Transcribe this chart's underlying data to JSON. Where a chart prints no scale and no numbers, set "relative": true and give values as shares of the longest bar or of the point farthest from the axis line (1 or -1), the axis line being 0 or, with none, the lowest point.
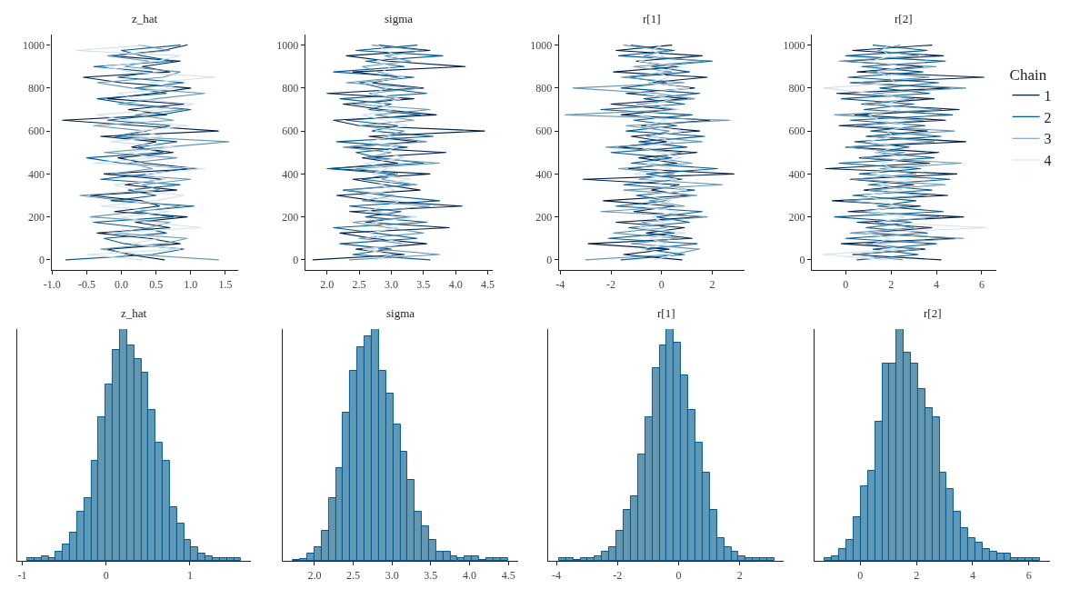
{
  "chart_data": [
    {
      "type": "line",
      "title": "z_hat",
      "legend": "right",
      "legend_title": "Chain",
      "xlim": [
        -1.01,
        1.69
      ],
      "xticks": [
        {
          "value": -1.0,
          "label": "-1.0"
        },
        -0.5,
        {
          "value": 0,
          "label": "0.0"
        },
        0.5,
        {
          "value": 1.0,
          "label": "1.0"
        },
        1.5
      ],
      "ylim": [
        -47,
        1049
      ],
      "yticks": [
        0,
        200,
        400,
        600,
        800,
        1000
      ],
      "series": [
        {
          "name": "1",
          "color": "#011f4b",
          "values": [
            0,
            25,
            50,
            75,
            100,
            125,
            150,
            175,
            200,
            225,
            250,
            275,
            300,
            325,
            350,
            375,
            400,
            425,
            450,
            475,
            500,
            525,
            550,
            575,
            600,
            625,
            650,
            675,
            700,
            725,
            750,
            775,
            800,
            825,
            850,
            875,
            900,
            925,
            950,
            975,
            1000
          ],
          "x": [
            0.62,
            0.1,
            -0.2,
            0.85,
            0.4,
            -0.35,
            0.7,
            0.2,
            0.95,
            -0.1,
            0.55,
            0.3,
            -0.45,
            0.8,
            0.05,
            0.6,
            -0.25,
            1.1,
            0.35,
            -0.05,
            0.75,
            0.15,
            0.5,
            -0.3,
            1.4,
            0.25,
            -0.85,
            0.65,
            0.1,
            0.9,
            -0.2,
            0.45,
            1.0,
            0.0,
            -0.55,
            0.7,
            0.3,
            0.85,
            -0.15,
            0.6,
            0.95
          ]
        },
        {
          "name": "2",
          "color": "#005b96",
          "values": [
            0,
            25,
            50,
            75,
            100,
            125,
            150,
            175,
            200,
            225,
            250,
            275,
            300,
            325,
            350,
            375,
            400,
            425,
            450,
            475,
            500,
            525,
            550,
            575,
            600,
            625,
            650,
            675,
            700,
            725,
            750,
            775,
            800,
            825,
            850,
            875,
            900,
            925,
            950,
            975,
            1000
          ],
          "x": [
            -0.8,
            0.45,
            0.9,
            0.05,
            -0.25,
            0.65,
            0.3,
            -0.4,
            0.75,
            0.2,
            1.05,
            -0.15,
            0.5,
            0.1,
            0.85,
            -0.3,
            0.4,
            0.95,
            0.0,
            -0.5,
            0.6,
            0.25,
            0.8,
            -0.1,
            0.35,
            0.7,
            -0.2,
            0.55,
            1.0,
            0.15,
            -0.35,
            0.65,
            0.2,
            0.9,
            -0.05,
            0.45,
            -0.4,
            0.75,
            0.3,
            0.0,
            0.85
          ]
        },
        {
          "name": "3",
          "color": "#6497b1",
          "values": [
            0,
            25,
            50,
            75,
            100,
            125,
            150,
            175,
            200,
            225,
            250,
            275,
            300,
            325,
            350,
            375,
            400,
            425,
            450,
            475,
            500,
            525,
            550,
            575,
            600,
            625,
            650,
            675,
            700,
            725,
            750,
            775,
            800,
            825,
            850,
            875,
            900,
            925,
            950,
            975,
            1000
          ],
          "x": [
            1.4,
            0.2,
            -0.3,
            0.6,
            0.95,
            -0.1,
            0.4,
            0.7,
            -0.45,
            0.25,
            0.85,
            0.05,
            -0.6,
            0.55,
            0.3,
            1.0,
            -0.15,
            0.45,
            0.1,
            0.8,
            -0.25,
            0.65,
            1.55,
            0.0,
            0.35,
            -0.4,
            0.75,
            0.2,
            0.9,
            -0.05,
            0.5,
            1.2,
            0.15,
            -0.35,
            0.6,
            0.85,
            0.05,
            0.4,
            -0.2,
            0.7,
            0.25
          ]
        },
        {
          "name": "4",
          "color": "#d1e1ec",
          "values": [
            0,
            25,
            50,
            75,
            100,
            125,
            150,
            175,
            200,
            225,
            250,
            275,
            300,
            325,
            350,
            375,
            400,
            425,
            450,
            475,
            500,
            525,
            550,
            575,
            600,
            625,
            650,
            675,
            700,
            725,
            750,
            775,
            800,
            825,
            850,
            875,
            900,
            925,
            950,
            975,
            1000
          ],
          "x": [
            0.3,
            -0.5,
            0.85,
            0.15,
            0.55,
            -0.2,
            1.15,
            0.4,
            0.0,
            0.7,
            -0.3,
            0.5,
            0.9,
            0.2,
            -0.1,
            0.65,
            0.35,
            1.2,
            -0.4,
            0.45,
            0.1,
            0.75,
            -0.15,
            0.6,
            0.25,
            0.95,
            0.05,
            -0.35,
            0.55,
            1.05,
            0.2,
            -0.05,
            0.8,
            0.4,
            1.35,
            0.15,
            -0.25,
            0.5,
            0.85,
            -0.65,
            0.35
          ]
        }
      ]
    },
    {
      "type": "line",
      "title": "sigma",
      "xlim": [
        1.66,
        4.57
      ],
      "xticks": [
        {
          "value": 2.0,
          "label": "2.0"
        },
        2.5,
        {
          "value": 3.0,
          "label": "3.0"
        },
        3.5,
        {
          "value": 4.0,
          "label": "4.0"
        },
        4.5
      ],
      "ylim": [
        -47,
        1049
      ],
      "yticks": [
        0,
        200,
        400,
        600,
        800,
        1000
      ],
      "series": [
        {
          "color": "#011f4b",
          "values": [
            0,
            25,
            50,
            75,
            100,
            125,
            150,
            175,
            200,
            225,
            250,
            275,
            300,
            325,
            350,
            375,
            400,
            425,
            450,
            475,
            500,
            525,
            550,
            575,
            600,
            625,
            650,
            675,
            700,
            725,
            750,
            775,
            800,
            825,
            850,
            875,
            900,
            925,
            950,
            975,
            1000
          ],
          "x": [
            1.78,
            3.2,
            2.45,
            3.55,
            2.7,
            2.2,
            3.9,
            2.6,
            3.3,
            2.35,
            4.1,
            2.75,
            2.15,
            3.45,
            2.9,
            2.4,
            3.6,
            2.05,
            3.1,
            2.55,
            3.85,
            2.3,
            3.4,
            2.65,
            4.45,
            2.5,
            2.1,
            3.7,
            2.85,
            2.25,
            3.35,
            2.0,
            3.5,
            2.7,
            3.15,
            2.4,
            4.15,
            2.95,
            2.3,
            3.6,
            2.8
          ]
        },
        {
          "color": "#005b96",
          "values": [
            0,
            25,
            50,
            75,
            100,
            125,
            150,
            175,
            200,
            225,
            250,
            275,
            300,
            325,
            350,
            375,
            400,
            425,
            450,
            475,
            500,
            525,
            550,
            575,
            600,
            625,
            650,
            675,
            700,
            725,
            750,
            775,
            800,
            825,
            850,
            875,
            900,
            925,
            950,
            975,
            1000
          ],
          "x": [
            3.6,
            2.4,
            3.0,
            2.2,
            3.4,
            2.75,
            2.1,
            3.55,
            2.6,
            3.15,
            2.35,
            3.75,
            2.9,
            2.25,
            3.3,
            2.55,
            3.05,
            2.0,
            3.5,
            2.8,
            2.45,
            3.25,
            2.15,
            3.65,
            2.7,
            3.1,
            2.3,
            3.45,
            2.65,
            3.0,
            2.2,
            3.55,
            2.85,
            2.5,
            3.35,
            2.1,
            3.2,
            2.6,
            3.8,
            2.45,
            3.4
          ]
        },
        {
          "color": "#6497b1",
          "values": [
            0,
            25,
            50,
            75,
            100,
            125,
            150,
            175,
            200,
            225,
            250,
            275,
            300,
            325,
            350,
            375,
            400,
            425,
            450,
            475,
            500,
            525,
            550,
            575,
            600,
            625,
            650,
            675,
            700,
            725,
            750,
            775,
            800,
            825,
            850,
            875,
            900,
            925,
            950,
            975,
            1000
          ],
          "x": [
            2.35,
            3.75,
            2.8,
            3.2,
            2.5,
            3.5,
            2.95,
            2.4,
            3.3,
            2.7,
            3.6,
            2.55,
            3.05,
            2.3,
            3.4,
            2.85,
            3.1,
            2.45,
            3.75,
            2.6,
            3.0,
            2.25,
            3.55,
            2.9,
            3.2,
            2.5,
            3.35,
            2.75,
            3.6,
            2.4,
            3.05,
            2.65,
            3.45,
            2.3,
            3.15,
            2.8,
            2.55,
            3.3,
            2.9,
            3.5,
            2.7
          ]
        },
        {
          "color": "#d1e1ec",
          "values": [
            0,
            25,
            50,
            75,
            100,
            125,
            150,
            175,
            200,
            225,
            250,
            275,
            300,
            325,
            350,
            375,
            400,
            425,
            450,
            475,
            500,
            525,
            550,
            575,
            600,
            625,
            650,
            675,
            700,
            725,
            750,
            775,
            800,
            825,
            850,
            875,
            900,
            925,
            950,
            975,
            1000
          ],
          "x": [
            2.75,
            3.0,
            2.55,
            3.25,
            2.85,
            2.65,
            3.1,
            2.7,
            3.4,
            2.6,
            2.9,
            3.15,
            2.5,
            3.05,
            2.8,
            3.3,
            2.7,
            2.95,
            2.6,
            3.2,
            2.85,
            3.1,
            2.65,
            3.0,
            2.75,
            3.25,
            2.9,
            2.55,
            3.05,
            2.8,
            3.15,
            2.7,
            2.95,
            2.6,
            3.2,
            2.85,
            3.0,
            2.75,
            3.1,
            2.9,
            2.8
          ]
        }
      ]
    },
    {
      "type": "line",
      "title": "r[1]",
      "xlim": [
        -4.05,
        3.26
      ],
      "xticks": [
        -4,
        -2,
        0,
        2
      ],
      "ylim": [
        -47,
        1049
      ],
      "yticks": [
        0,
        200,
        400,
        600,
        800,
        1000
      ],
      "series": [
        {
          "color": "#011f4b",
          "values": [
            0,
            25,
            50,
            75,
            100,
            125,
            150,
            175,
            200,
            225,
            250,
            275,
            300,
            325,
            350,
            375,
            400,
            425,
            450,
            475,
            500,
            525,
            550,
            575,
            600,
            625,
            650,
            675,
            700,
            725,
            750,
            775,
            800,
            825,
            850,
            875,
            900,
            925,
            950,
            975,
            1000
          ],
          "x": [
            0.8,
            -1.5,
            0.3,
            -2.9,
            1.2,
            -0.6,
            0.9,
            -1.8,
            1.6,
            -1.1,
            0.5,
            -2.3,
            1.1,
            -0.4,
            0.7,
            -3.1,
            2.85,
            -1.3,
            0.6,
            -0.9,
            1.4,
            -1.7,
            0.2,
            -1.2,
            1.5,
            -0.8,
            1.9,
            -1.6,
            0.4,
            -2.0,
            1.0,
            -1.4,
            1.3,
            -0.5,
            1.8,
            -1.9,
            0.7,
            -1.0,
            1.6,
            -1.8,
            0.4
          ]
        },
        {
          "color": "#005b96",
          "values": [
            0,
            25,
            50,
            75,
            100,
            125,
            150,
            175,
            200,
            225,
            250,
            275,
            300,
            325,
            350,
            375,
            400,
            425,
            450,
            475,
            500,
            525,
            550,
            575,
            600,
            625,
            650,
            675,
            700,
            725,
            750,
            775,
            800,
            825,
            850,
            875,
            900,
            925,
            950,
            975,
            1000
          ],
          "x": [
            -1.6,
            0.9,
            -0.7,
            1.4,
            -2.1,
            0.5,
            -1.3,
            1.1,
            -0.2,
            1.6,
            -1.8,
            0.3,
            -1.0,
            1.3,
            -1.5,
            0.8,
            -0.6,
            2.2,
            -1.2,
            0.4,
            -2.0,
            1.0,
            -0.9,
            1.7,
            -1.4,
            0.6,
            -1.1,
            1.2,
            -2.4,
            0.9,
            -0.7,
            1.5,
            -1.6,
            0.2,
            -1.3,
            1.1,
            -0.4,
            2.0,
            -1.7,
            0.5,
            -1.2
          ]
        },
        {
          "color": "#6497b1",
          "values": [
            0,
            25,
            50,
            75,
            100,
            125,
            150,
            175,
            200,
            225,
            250,
            275,
            300,
            325,
            350,
            375,
            400,
            425,
            450,
            475,
            500,
            525,
            550,
            575,
            600,
            625,
            650,
            675,
            700,
            725,
            750,
            775,
            800,
            825,
            850,
            875,
            900,
            925,
            950,
            975,
            1000
          ],
          "x": [
            -3.0,
            0.4,
            1.5,
            -1.2,
            0.7,
            -1.9,
            0.2,
            -0.8,
            1.8,
            -2.4,
            0.9,
            -0.5,
            1.4,
            -1.5,
            2.4,
            -0.9,
            0.5,
            -1.7,
            1.2,
            -0.3,
            0.8,
            -2.2,
            1.6,
            -0.6,
            0.3,
            -1.4,
            2.7,
            -3.8,
            0.6,
            -1.0,
            1.3,
            -0.2,
            -3.5,
            0.9,
            -1.6,
            0.4,
            -1.1,
            1.7,
            -0.7,
            0.2,
            -1.5
          ]
        },
        {
          "color": "#d1e1ec",
          "values": [
            0,
            25,
            50,
            75,
            100,
            125,
            150,
            175,
            200,
            225,
            250,
            275,
            300,
            325,
            350,
            375,
            400,
            425,
            450,
            475,
            500,
            525,
            550,
            575,
            600,
            625,
            650,
            675,
            700,
            725,
            750,
            775,
            800,
            825,
            850,
            875,
            900,
            925,
            950,
            975,
            1000
          ],
          "x": [
            -0.3,
            0.5,
            -0.8,
            0.2,
            -0.5,
            0.9,
            -1.0,
            0.1,
            -0.4,
            0.7,
            -0.9,
            0.3,
            -0.6,
            1.0,
            -0.2,
            0.6,
            -1.1,
            0.4,
            -0.7,
            0.8,
            -0.1,
            -0.9,
            0.5,
            -0.4,
            0.9,
            -0.6,
            0.2,
            -1.0,
            0.7,
            -0.3,
            0.4,
            -0.8,
            1.1,
            -0.5,
            0.3,
            -0.2,
            0.8,
            -0.9,
            0.1,
            -0.4,
            0.0
          ]
        }
      ]
    },
    {
      "type": "line",
      "title": "r[2]",
      "xlim": [
        -1.5,
        6.64
      ],
      "xticks": [
        0,
        2,
        4,
        6
      ],
      "ylim": [
        -47,
        1049
      ],
      "yticks": [
        0,
        200,
        400,
        600,
        800,
        1000
      ],
      "series": [
        {
          "color": "#011f4b",
          "values": [
            0,
            25,
            50,
            75,
            100,
            125,
            150,
            175,
            200,
            225,
            250,
            275,
            300,
            325,
            350,
            375,
            400,
            425,
            450,
            475,
            500,
            525,
            550,
            575,
            600,
            625,
            650,
            675,
            700,
            725,
            750,
            775,
            800,
            825,
            850,
            875,
            900,
            925,
            950,
            975,
            1000
          ],
          "x": [
            4.2,
            0.3,
            3.5,
            -0.2,
            4.8,
            1.0,
            3.8,
            0.5,
            5.2,
            0.1,
            3.3,
            -0.6,
            4.5,
            0.8,
            3.0,
            0.2,
            4.9,
            -0.9,
            3.7,
            0.6,
            4.1,
            0.0,
            5.3,
            0.9,
            3.6,
            -0.3,
            4.4,
            0.4,
            5.0,
            0.7,
            3.9,
            -0.4,
            4.6,
            0.2,
            6.1,
            0.5,
            3.4,
            -0.1,
            4.3,
            0.3,
            3.8
          ]
        },
        {
          "color": "#005b96",
          "values": [
            0,
            25,
            50,
            75,
            100,
            125,
            150,
            175,
            200,
            225,
            250,
            275,
            300,
            325,
            350,
            375,
            400,
            425,
            450,
            475,
            500,
            525,
            550,
            575,
            600,
            625,
            650,
            675,
            700,
            725,
            750,
            775,
            800,
            825,
            850,
            875,
            900,
            925,
            950,
            975,
            1000
          ],
          "x": [
            0.5,
            3.2,
            1.2,
            4.0,
            0.0,
            3.6,
            0.9,
            2.9,
            -0.5,
            4.3,
            1.4,
            3.1,
            0.3,
            3.8,
            1.0,
            4.6,
            0.6,
            3.3,
            -0.3,
            3.9,
            1.3,
            2.8,
            0.4,
            4.2,
            1.1,
            3.5,
            0.2,
            4.7,
            0.8,
            3.0,
            -0.2,
            3.7,
            1.5,
            4.1,
            0.1,
            3.4,
            0.7,
            4.4,
            0.0,
            3.6,
            1.2
          ]
        },
        {
          "color": "#6497b1",
          "values": [
            0,
            25,
            50,
            75,
            100,
            125,
            150,
            175,
            200,
            225,
            250,
            275,
            300,
            325,
            350,
            375,
            400,
            425,
            450,
            475,
            500,
            525,
            550,
            575,
            600,
            625,
            650,
            675,
            700,
            725,
            750,
            775,
            800,
            825,
            850,
            875,
            900,
            925,
            950,
            975,
            1000
          ],
          "x": [
            2.5,
            0.4,
            3.3,
            0.9,
            5.2,
            0.2,
            3.0,
            1.3,
            4.1,
            0.6,
            2.8,
            -0.1,
            3.6,
            1.0,
            4.4,
            0.3,
            3.1,
            1.5,
            5.1,
            0.7,
            2.6,
            0.0,
            3.9,
            1.1,
            4.8,
            0.5,
            3.4,
            -0.5,
            4.2,
            0.8,
            3.0,
            1.2,
            5.3,
            0.4,
            3.7,
            0.9,
            4.0,
            -0.3,
            3.2,
            1.4,
            2.4
          ]
        },
        {
          "color": "#d1e1ec",
          "values": [
            0,
            25,
            50,
            75,
            100,
            125,
            150,
            175,
            200,
            225,
            250,
            275,
            300,
            325,
            350,
            375,
            400,
            425,
            450,
            475,
            500,
            525,
            550,
            575,
            600,
            625,
            650,
            675,
            700,
            725,
            750,
            775,
            800,
            825,
            850,
            875,
            900,
            925,
            950,
            975,
            1000
          ],
          "x": [
            1.8,
            -1.0,
            2.4,
            1.2,
            2.0,
            0.9,
            6.2,
            1.5,
            2.6,
            1.0,
            2.2,
            1.7,
            0.8,
            2.5,
            1.4,
            2.9,
            1.1,
            2.0,
            1.6,
            2.7,
            1.3,
            2.3,
            0.9,
            2.1,
            1.8,
            2.8,
            1.5,
            1.0,
            2.4,
            1.7,
            2.6,
            1.2,
            -1.0,
            2.2,
            1.9,
            1.4,
            2.5,
            1.1,
            2.0,
            1.6,
            1.9
          ]
        }
      ]
    },
    {
      "type": "bar",
      "title": "z_hat",
      "relative": true,
      "color": "#6497b1",
      "xlim": [
        -1.06,
        1.73
      ],
      "xticks": [
        -1,
        0,
        1
      ],
      "x": [
        -0.898,
        -0.813,
        -0.728,
        -0.643,
        -0.558,
        -0.473,
        -0.388,
        -0.303,
        -0.218,
        -0.133,
        -0.048,
        0.038,
        0.123,
        0.208,
        0.293,
        0.378,
        0.463,
        0.548,
        0.633,
        0.718,
        0.803,
        0.888,
        0.973,
        1.058,
        1.143,
        1.228,
        1.313,
        1.398,
        1.483,
        1.568
      ],
      "values": [
        0.01,
        0.01,
        0.02,
        0.01,
        0.04,
        0.07,
        0.12,
        0.21,
        0.27,
        0.43,
        0.62,
        0.76,
        0.91,
        1,
        0.93,
        0.87,
        0.81,
        0.65,
        0.51,
        0.43,
        0.23,
        0.16,
        0.09,
        0.06,
        0.03,
        0.02,
        0.01,
        0.01,
        0.01,
        0.01
      ]
    },
    {
      "type": "bar",
      "title": "sigma",
      "relative": true,
      "color": "#6497b1",
      "xlim": [
        1.59,
        4.63
      ],
      "xticks": [
        {
          "value": 2.0,
          "label": "2.0"
        },
        2.5,
        {
          "value": 3.0,
          "label": "3.0"
        },
        3.5,
        {
          "value": 4.0,
          "label": "4.0"
        },
        4.5
      ],
      "x": [
        1.769,
        1.861,
        1.954,
        2.046,
        2.138,
        2.231,
        2.323,
        2.415,
        2.508,
        2.6,
        2.692,
        2.785,
        2.877,
        2.969,
        3.062,
        3.154,
        3.246,
        3.339,
        3.431,
        3.523,
        3.616,
        3.708,
        3.8,
        3.893,
        3.985,
        4.077,
        4.17,
        4.262,
        4.354,
        4.447
      ],
      "values": [
        0.004,
        0.007,
        0.03,
        0.06,
        0.13,
        0.27,
        0.4,
        0.64,
        0.82,
        0.92,
        0.97,
        1,
        0.82,
        0.72,
        0.59,
        0.47,
        0.35,
        0.21,
        0.15,
        0.09,
        0.04,
        0.04,
        0.02,
        0.01,
        0.02,
        0.02,
        0.003,
        0.01,
        0.01,
        0.01
      ]
    },
    {
      "type": "bar",
      "title": "r[1]",
      "relative": true,
      "color": "#6497b1",
      "xlim": [
        -4.27,
        3.44
      ],
      "xticks": [
        -4,
        -2,
        0,
        2
      ],
      "x": [
        -3.8,
        -3.565,
        -3.33,
        -3.095,
        -2.86,
        -2.625,
        -2.39,
        -2.155,
        -1.92,
        -1.685,
        -1.45,
        -1.215,
        -0.98,
        -0.745,
        -0.51,
        -0.275,
        -0.04,
        0.195,
        0.43,
        0.665,
        0.9,
        1.135,
        1.37,
        1.605,
        1.84,
        2.075,
        2.31,
        2.545,
        2.78,
        3.015
      ],
      "values": [
        0.01,
        0.01,
        0.003,
        0.01,
        0.01,
        0.02,
        0.04,
        0.06,
        0.13,
        0.22,
        0.28,
        0.46,
        0.62,
        0.83,
        0.93,
        1,
        0.94,
        0.8,
        0.65,
        0.51,
        0.38,
        0.22,
        0.1,
        0.06,
        0.04,
        0.02,
        0.01,
        0.01,
        0.01,
        0.01
      ]
    },
    {
      "type": "bar",
      "title": "r[2]",
      "relative": true,
      "color": "#6497b1",
      "xlim": [
        -1.63,
        6.76
      ],
      "xticks": [
        0,
        2,
        4,
        6
      ],
      "x": [
        -1.133,
        -0.878,
        -0.623,
        -0.368,
        -0.113,
        0.143,
        0.398,
        0.653,
        0.908,
        1.163,
        1.418,
        1.673,
        1.928,
        2.183,
        2.438,
        2.693,
        2.948,
        3.203,
        3.458,
        3.713,
        3.968,
        4.223,
        4.478,
        4.733,
        4.988,
        5.243,
        5.498,
        5.753,
        6.008,
        6.263
      ],
      "values": [
        0.01,
        0.02,
        0.05,
        0.09,
        0.19,
        0.32,
        0.39,
        0.6,
        0.85,
        0.85,
        1,
        0.9,
        0.85,
        0.74,
        0.66,
        0.62,
        0.38,
        0.31,
        0.21,
        0.14,
        0.1,
        0.08,
        0.05,
        0.04,
        0.03,
        0.03,
        0.01,
        0.01,
        0.01,
        0.01
      ]
    }
  ]
}
